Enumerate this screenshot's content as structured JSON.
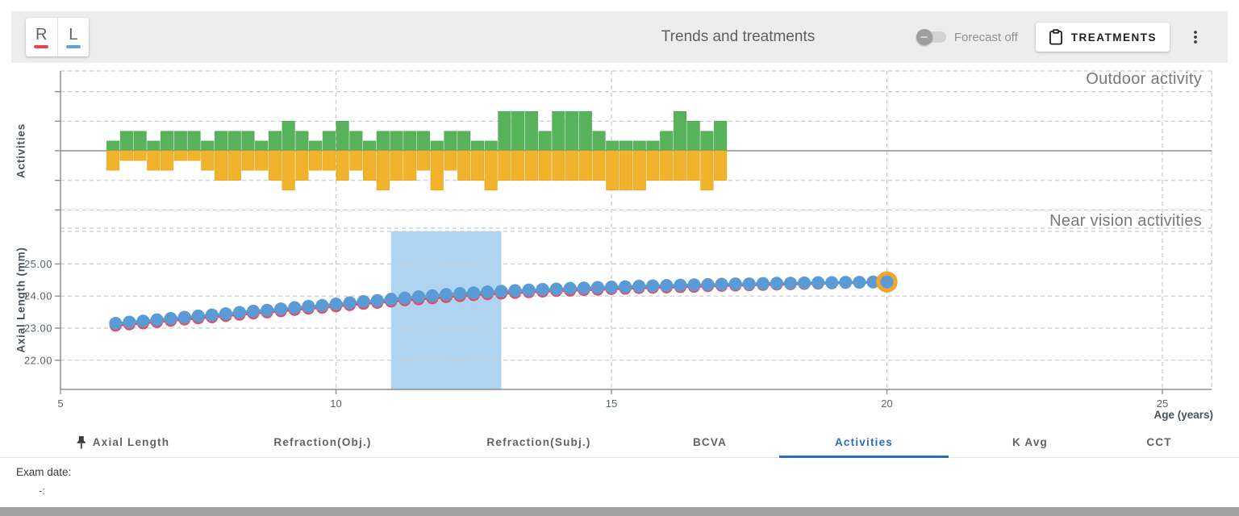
{
  "toolbar": {
    "title": "Trends and treatments",
    "eye_buttons": [
      {
        "label": "R",
        "underline_color": "#E8435A"
      },
      {
        "label": "L",
        "underline_color": "#64A0DC"
      }
    ],
    "forecast": {
      "label": "Forecast off",
      "state": "off"
    },
    "treatments_button": {
      "label": "TREATMENTS",
      "icon": "clipboard-icon"
    },
    "menu_icon": "kebab-menu-icon"
  },
  "chart_data": [
    {
      "type": "bar",
      "title": "Outdoor activity",
      "subtitle": "Near vision activities",
      "ylabel": "Activities",
      "x_start_age": 5.84,
      "bar_step_years": 0.245,
      "ylim": [
        -2.62,
        2.7
      ],
      "grid": true,
      "series": [
        {
          "name": "outdoor-activity",
          "color": "#58B25C",
          "direction": "up",
          "values": [
            0.33,
            0.66,
            0.66,
            0.33,
            0.66,
            0.66,
            0.66,
            0.33,
            0.66,
            0.66,
            0.66,
            0.33,
            0.66,
            1,
            0.66,
            0.33,
            0.66,
            1,
            0.66,
            0.33,
            0.66,
            0.66,
            0.66,
            0.66,
            0.33,
            0.66,
            0.66,
            0.33,
            0.33,
            1.33,
            1.33,
            1.33,
            0.66,
            1.33,
            1.33,
            1.33,
            0.66,
            0.33,
            0.33,
            0.33,
            0.33,
            0.66,
            1.33,
            1,
            0.66,
            1
          ]
        },
        {
          "name": "near-vision-activity",
          "color": "#F1B32B",
          "direction": "down",
          "values": [
            0.66,
            0.33,
            0.33,
            0.66,
            0.66,
            0.33,
            0.33,
            0.66,
            1,
            1,
            0.66,
            0.66,
            1,
            1.33,
            1,
            0.66,
            0.66,
            1,
            0.66,
            1,
            1.33,
            1,
            1,
            0.66,
            1.33,
            0.66,
            1,
            1,
            1.33,
            1,
            1,
            1,
            1,
            1,
            1,
            1,
            1,
            1.33,
            1.33,
            1.33,
            1,
            1,
            1,
            1,
            1.33,
            1
          ]
        }
      ]
    },
    {
      "type": "line",
      "ylabel": "Axial Length (mm)",
      "xlabel": "Age (years)",
      "x_ticks": [
        5,
        10,
        15,
        20,
        25
      ],
      "y_ticks": [
        22,
        23,
        24,
        25
      ],
      "y_tick_labels": [
        "22.00",
        "23.00",
        "24.00",
        "25.00"
      ],
      "xlim": [
        5,
        26.4
      ],
      "ylim": [
        21.05,
        26.02
      ],
      "highlight_band": {
        "from_age": 11,
        "to_age": 13,
        "color": "#AED4F1"
      },
      "x": [
        6,
        6.25,
        6.5,
        6.75,
        7,
        7.25,
        7.5,
        7.75,
        8,
        8.25,
        8.5,
        8.75,
        9,
        9.25,
        9.5,
        9.75,
        10,
        10.25,
        10.5,
        10.75,
        11,
        11.25,
        11.5,
        11.75,
        12,
        12.25,
        12.5,
        12.75,
        13,
        13.25,
        13.5,
        13.75,
        14,
        14.25,
        14.5,
        14.75,
        15,
        15.25,
        15.5,
        15.75,
        16,
        16.25,
        16.5,
        16.75,
        17,
        17.25,
        17.5,
        17.75,
        18,
        18.25,
        18.5,
        18.75,
        19,
        19.25,
        19.5,
        19.75,
        20
      ],
      "series": [
        {
          "name": "right-eye",
          "color": "#E74C5F",
          "values": [
            23.08,
            23.12,
            23.15,
            23.19,
            23.23,
            23.27,
            23.31,
            23.34,
            23.38,
            23.42,
            23.46,
            23.49,
            23.53,
            23.57,
            23.61,
            23.64,
            23.68,
            23.72,
            23.76,
            23.79,
            23.83,
            23.87,
            23.9,
            23.93,
            23.97,
            24,
            24.03,
            24.06,
            24.08,
            24.1,
            24.12,
            24.14,
            24.16,
            24.17,
            24.19,
            24.2,
            24.22,
            24.23,
            24.25,
            24.26,
            24.27,
            24.28,
            24.29,
            24.31,
            24.32,
            24.33,
            24.34,
            24.35,
            24.36,
            24.37,
            24.38,
            24.39,
            24.4,
            24.41,
            24.42,
            24.43,
            24.44
          ]
        },
        {
          "name": "left-eye",
          "color": "#5B9BD5",
          "values": [
            23.15,
            23.19,
            23.22,
            23.26,
            23.3,
            23.34,
            23.38,
            23.41,
            23.45,
            23.49,
            23.53,
            23.56,
            23.6,
            23.64,
            23.68,
            23.71,
            23.75,
            23.79,
            23.83,
            23.86,
            23.9,
            23.94,
            23.98,
            24.01,
            24.05,
            24.08,
            24.1,
            24.13,
            24.15,
            24.17,
            24.19,
            24.21,
            24.22,
            24.24,
            24.25,
            24.27,
            24.28,
            24.29,
            24.31,
            24.32,
            24.33,
            24.34,
            24.35,
            24.36,
            24.37,
            24.38,
            24.38,
            24.39,
            24.4,
            24.4,
            24.41,
            24.42,
            24.42,
            24.43,
            24.43,
            24.44,
            24.44
          ]
        }
      ],
      "selected_point": {
        "series": "left-eye",
        "age": 20,
        "ring_color": "#F1A72D"
      }
    }
  ],
  "tabs": {
    "active_color": "#2B6CBF",
    "items": [
      {
        "label": "Axial Length",
        "pinned": true,
        "active": false
      },
      {
        "label": "Refraction(Obj.)",
        "pinned": false,
        "active": false
      },
      {
        "label": "Refraction(Subj.)",
        "pinned": false,
        "active": false
      },
      {
        "label": "BCVA",
        "pinned": false,
        "active": false
      },
      {
        "label": "Activities",
        "pinned": false,
        "active": true
      },
      {
        "label": "K Avg",
        "pinned": false,
        "active": false
      },
      {
        "label": "CCT",
        "pinned": false,
        "active": false
      }
    ]
  },
  "footer": {
    "exam_date_label": "Exam date:",
    "exam_date_value": "-:"
  }
}
